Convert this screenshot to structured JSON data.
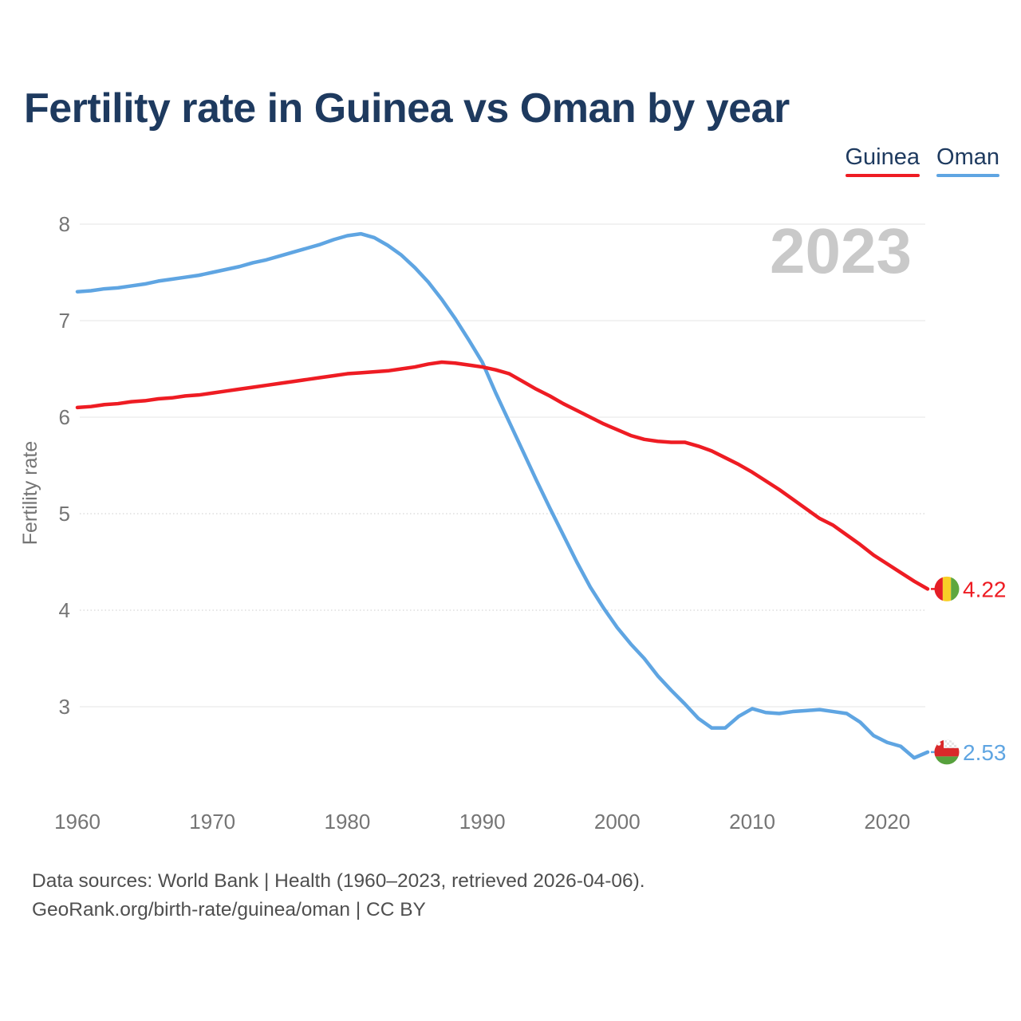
{
  "title": "Fertility rate in Guinea vs Oman by year",
  "watermark": "2023",
  "y_axis_label": "Fertility rate",
  "legend": [
    {
      "label": "Guinea",
      "color": "#ee1c23"
    },
    {
      "label": "Oman",
      "color": "#5fa5e2"
    }
  ],
  "end_labels": [
    {
      "series": "Guinea",
      "value": "4.22",
      "color": "#ee1c23",
      "flag": "guinea-flag"
    },
    {
      "series": "Oman",
      "value": "2.53",
      "color": "#5fa5e2",
      "flag": "oman-flag"
    }
  ],
  "footer": {
    "line1": "Data sources: World Bank | Health (1960–2023, retrieved 2026-04-06).",
    "line2": "GeoRank.org/birth-rate/guinea/oman | CC BY"
  },
  "chart_data": {
    "type": "line",
    "title": "Fertility rate in Guinea vs Oman by year",
    "xlabel": "",
    "ylabel": "Fertility rate",
    "x_range": [
      1960,
      2023
    ],
    "x_ticks": [
      1960,
      1970,
      1980,
      1990,
      2000,
      2010,
      2020
    ],
    "y_ticks": [
      3,
      4,
      5,
      6,
      7,
      8
    ],
    "dotted_grid_ticks": [
      4,
      5
    ],
    "ylim_top": 8,
    "grid": "horizontal-only",
    "legend_position": "top-right",
    "x": [
      1960,
      1961,
      1962,
      1963,
      1964,
      1965,
      1966,
      1967,
      1968,
      1969,
      1970,
      1971,
      1972,
      1973,
      1974,
      1975,
      1976,
      1977,
      1978,
      1979,
      1980,
      1981,
      1982,
      1983,
      1984,
      1985,
      1986,
      1987,
      1988,
      1989,
      1990,
      1991,
      1992,
      1993,
      1994,
      1995,
      1996,
      1997,
      1998,
      1999,
      2000,
      2001,
      2002,
      2003,
      2004,
      2005,
      2006,
      2007,
      2008,
      2009,
      2010,
      2011,
      2012,
      2013,
      2014,
      2015,
      2016,
      2017,
      2018,
      2019,
      2020,
      2021,
      2022,
      2023
    ],
    "series": [
      {
        "name": "Guinea",
        "color": "#ee1c23",
        "values": [
          6.1,
          6.11,
          6.13,
          6.14,
          6.16,
          6.17,
          6.19,
          6.2,
          6.22,
          6.23,
          6.25,
          6.27,
          6.29,
          6.31,
          6.33,
          6.35,
          6.37,
          6.39,
          6.41,
          6.43,
          6.45,
          6.46,
          6.47,
          6.48,
          6.5,
          6.52,
          6.55,
          6.57,
          6.56,
          6.54,
          6.52,
          6.49,
          6.45,
          6.37,
          6.29,
          6.22,
          6.14,
          6.07,
          6.0,
          5.93,
          5.87,
          5.81,
          5.77,
          5.75,
          5.74,
          5.74,
          5.7,
          5.65,
          5.58,
          5.51,
          5.43,
          5.34,
          5.25,
          5.15,
          5.05,
          4.95,
          4.88,
          4.78,
          4.68,
          4.57,
          4.48,
          4.39,
          4.3,
          4.22
        ]
      },
      {
        "name": "Oman",
        "color": "#5fa5e2",
        "values": [
          7.3,
          7.31,
          7.33,
          7.34,
          7.36,
          7.38,
          7.41,
          7.43,
          7.45,
          7.47,
          7.5,
          7.53,
          7.56,
          7.6,
          7.63,
          7.67,
          7.71,
          7.75,
          7.79,
          7.84,
          7.88,
          7.9,
          7.86,
          7.78,
          7.68,
          7.55,
          7.4,
          7.22,
          7.02,
          6.8,
          6.57,
          6.25,
          5.95,
          5.65,
          5.35,
          5.06,
          4.78,
          4.5,
          4.24,
          4.02,
          3.82,
          3.65,
          3.5,
          3.32,
          3.17,
          3.03,
          2.88,
          2.78,
          2.78,
          2.9,
          2.98,
          2.94,
          2.93,
          2.95,
          2.96,
          2.97,
          2.95,
          2.93,
          2.84,
          2.7,
          2.63,
          2.59,
          2.47,
          2.53
        ]
      }
    ]
  }
}
